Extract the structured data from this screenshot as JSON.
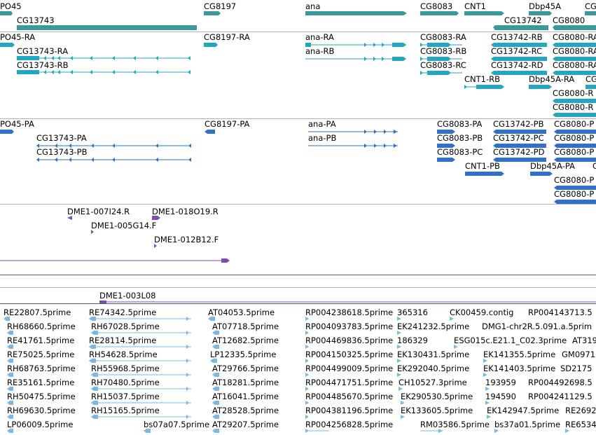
{
  "colors": {
    "gene": "#3a9a9a",
    "mrna": "#20a8c0",
    "protein": "#2e6fd0",
    "clone": "#7a4fb0",
    "est": "#7fb8df",
    "separator": "#b4b4b4"
  },
  "tracks": {
    "genes": {
      "items": [
        {
          "label": "PO45"
        },
        {
          "label": "CG13743"
        },
        {
          "label": "CG8197"
        },
        {
          "label": "ana"
        },
        {
          "label": "CG8083"
        },
        {
          "label": "CNT1"
        },
        {
          "label": "Dbp45A"
        },
        {
          "label": "CG13742"
        },
        {
          "label": "CG8080"
        },
        {
          "label": "CG"
        }
      ]
    },
    "transcripts": {
      "items": [
        {
          "label": "PO45-RA"
        },
        {
          "label": "CG13743-RA"
        },
        {
          "label": "CG13743-RB"
        },
        {
          "label": "CG8197-RA"
        },
        {
          "label": "ana-RA"
        },
        {
          "label": "ana-RB"
        },
        {
          "label": "CG8083-RA"
        },
        {
          "label": "CG8083-RB"
        },
        {
          "label": "CG8083-RC"
        },
        {
          "label": "CG13742-RB"
        },
        {
          "label": "CG13742-RC"
        },
        {
          "label": "CG13742-RD"
        },
        {
          "label": "CNT1-RB"
        },
        {
          "label": "Dbp45A-RA"
        },
        {
          "label": "CG8080-RA"
        },
        {
          "label": "CG8080-RA"
        },
        {
          "label": "CG8080-RA"
        },
        {
          "label": "CG"
        },
        {
          "label": "CG8080-R"
        },
        {
          "label": "CG8080-R"
        }
      ]
    },
    "proteins": {
      "items": [
        {
          "label": "PO45-PA"
        },
        {
          "label": "CG13743-PA"
        },
        {
          "label": "CG13743-PB"
        },
        {
          "label": "CG8197-PA"
        },
        {
          "label": "ana-PA"
        },
        {
          "label": "ana-PB"
        },
        {
          "label": "CG8083-PA"
        },
        {
          "label": "CG8083-PB"
        },
        {
          "label": "CG8083-PC"
        },
        {
          "label": "CG13742-PB"
        },
        {
          "label": "CG13742-PC"
        },
        {
          "label": "CG13742-PD"
        },
        {
          "label": "CNT1-PB"
        },
        {
          "label": "Dbp45A-PA"
        },
        {
          "label": "CG8080-P"
        },
        {
          "label": "CG8080-P"
        },
        {
          "label": "CG8080-P"
        },
        {
          "label": "CG8080-P"
        },
        {
          "label": "CG8080-P"
        },
        {
          "label": "C"
        }
      ]
    },
    "clones": {
      "items": [
        {
          "label": "DME1-007I24.R"
        },
        {
          "label": "DME1-018O19.R"
        },
        {
          "label": "DME1-005G14.F"
        },
        {
          "label": "DME1-012B12.F"
        },
        {
          "label": "DME1-003L08"
        }
      ]
    },
    "ests": {
      "items": [
        {
          "label": "RE22807.5prime"
        },
        {
          "label": "RE74342.5prime"
        },
        {
          "label": "AT04053.5prime"
        },
        {
          "label": "RP004238618.5prime"
        },
        {
          "label": "365316"
        },
        {
          "label": "CK00459.contig"
        },
        {
          "label": "RP004143713.5"
        },
        {
          "label": "RH68660.5prime"
        },
        {
          "label": "RH67028.5prime"
        },
        {
          "label": "AT07718.5prime"
        },
        {
          "label": "RP004093783.5prime"
        },
        {
          "label": "EK241232.5prime"
        },
        {
          "label": "DMG1-chr2R.5.091.a.5prim"
        },
        {
          "label": "RE41761.5prime"
        },
        {
          "label": "RE28114.5prime"
        },
        {
          "label": "AT12682.5prime"
        },
        {
          "label": "RP004469836.5prime"
        },
        {
          "label": "186329"
        },
        {
          "label": "ESG015c.E21.1_C02.3prime"
        },
        {
          "label": "AT319"
        },
        {
          "label": "RE75025.5prime"
        },
        {
          "label": "RH54628.5prime"
        },
        {
          "label": "LP12335.5prime"
        },
        {
          "label": "RP004150325.5prime"
        },
        {
          "label": "EK130431.5prime"
        },
        {
          "label": "EK141355.5prime"
        },
        {
          "label": "GM0971"
        },
        {
          "label": "RH68763.5prime"
        },
        {
          "label": "RH55968.5prime"
        },
        {
          "label": "AT29766.5prime"
        },
        {
          "label": "RP004499009.5prime"
        },
        {
          "label": "EK292040.5prime"
        },
        {
          "label": "EK141403.5prime"
        },
        {
          "label": "SD2175"
        },
        {
          "label": "RE35161.5prime"
        },
        {
          "label": "RH70480.5prime"
        },
        {
          "label": "AT18281.5prime"
        },
        {
          "label": "RP004471751.5prime"
        },
        {
          "label": "CH10527.3prime"
        },
        {
          "label": "193959"
        },
        {
          "label": "RP004492698.5"
        },
        {
          "label": "RH50475.5prime"
        },
        {
          "label": "RH15037.5prime"
        },
        {
          "label": "AT16041.5prime"
        },
        {
          "label": "RP004485670.5prime"
        },
        {
          "label": "EK290530.5prime"
        },
        {
          "label": "194590"
        },
        {
          "label": "RP004241129.5"
        },
        {
          "label": "RH69630.5prime"
        },
        {
          "label": "RH15165.5prime"
        },
        {
          "label": "AT28528.5prime"
        },
        {
          "label": "RP004381196.5prime"
        },
        {
          "label": "EK133605.5prime"
        },
        {
          "label": "EK142947.5prime"
        },
        {
          "label": "RE2692"
        },
        {
          "label": "LP06009.5prime"
        },
        {
          "label": "bs07a07.5prime"
        },
        {
          "label": "AT29207.5prime"
        },
        {
          "label": "RP004256828.5prime"
        },
        {
          "label": "RM03586.5prime"
        },
        {
          "label": "bs37a01.5prime"
        },
        {
          "label": "RE6534"
        }
      ]
    }
  }
}
